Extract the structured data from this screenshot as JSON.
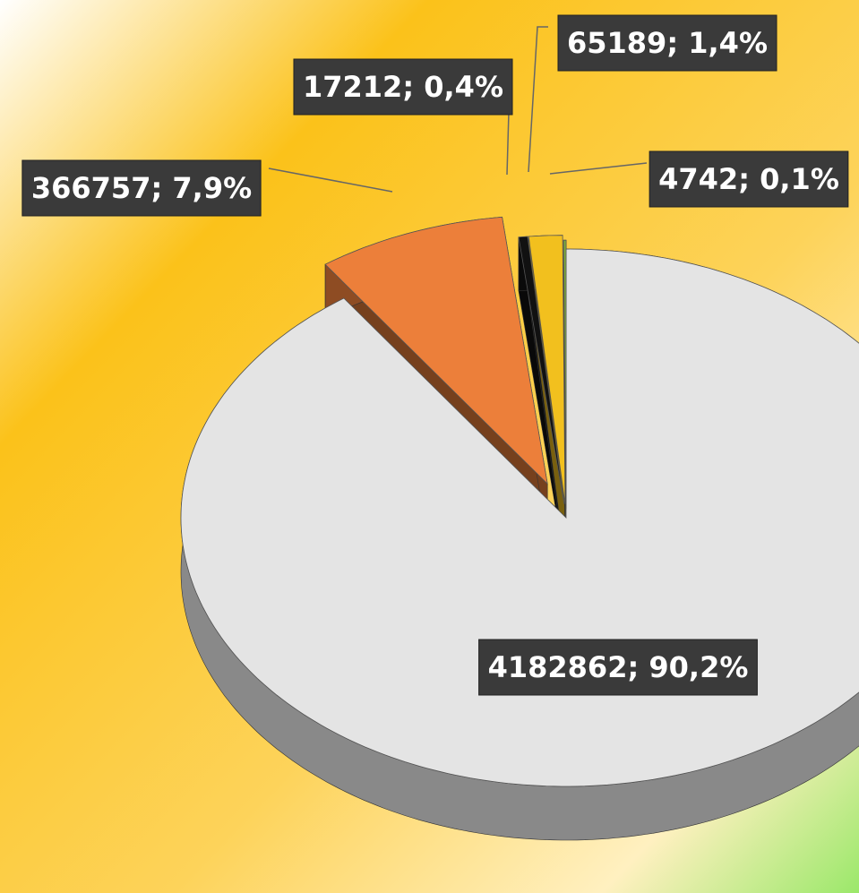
{
  "chart_data": {
    "type": "pie",
    "values": [
      4182862,
      366757,
      17212,
      65189,
      4742
    ],
    "value_labels": [
      "4182862; 90,2%",
      "366757; 7,9%",
      "17212; 0,4%",
      "65189; 1,4%",
      "4742; 0,1%"
    ],
    "colors": [
      "#e4e4e4",
      "#ec7f3a",
      "#111111",
      "#f2c01e",
      "#7fae3a"
    ]
  }
}
